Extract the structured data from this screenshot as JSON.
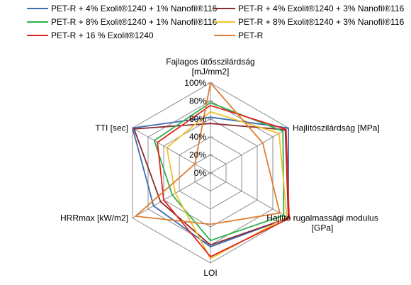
{
  "chart_data": {
    "type": "radar",
    "axes": [
      {
        "label_lines": [
          "Fajlagos ütősszilárdság",
          "[mJ/mm2]"
        ]
      },
      {
        "label_lines": [
          "Hajlítószilárdság [MPa]"
        ]
      },
      {
        "label_lines": [
          "Hajlító rugalmassági modulus",
          "[GPa]"
        ]
      },
      {
        "label_lines": [
          "LOI"
        ]
      },
      {
        "label_lines": [
          "HRRmax [kW/m2]"
        ]
      },
      {
        "label_lines": [
          "TTI [sec]"
        ]
      }
    ],
    "ticks": [
      "0%",
      "20%",
      "40%",
      "60%",
      "80%",
      "100%"
    ],
    "range": [
      0,
      100
    ],
    "grid": true,
    "legend_position": "top",
    "series": [
      {
        "name": "PET-R + 4% Exolit®1240 + 1% Nanofil®116",
        "color": "#3B6BB3",
        "values": [
          62,
          100,
          100,
          82,
          73,
          100
        ]
      },
      {
        "name": "PET-R + 4% Exolit®1240 + 3% Nanofil®116",
        "color": "#8B2A2E",
        "values": [
          55,
          96,
          100,
          80,
          64,
          98
        ]
      },
      {
        "name": "PET-R + 8% Exolit®1240 + 1% Nanofil®116",
        "color": "#2DB04A",
        "values": [
          78,
          93,
          94,
          75,
          49,
          72
        ]
      },
      {
        "name": "PET-R + 8% Exolit®1240 + 3% Nanofil®116",
        "color": "#F2C12E",
        "values": [
          68,
          88,
          98,
          95,
          45,
          56
        ]
      },
      {
        "name": "PET-R + 16 % Exolit®1240",
        "color": "#E32421",
        "values": [
          75,
          97,
          101,
          93,
          60,
          68
        ]
      },
      {
        "name": "PET-R",
        "color": "#E07B30",
        "values": [
          100,
          67,
          89,
          57,
          96,
          20
        ]
      }
    ]
  }
}
